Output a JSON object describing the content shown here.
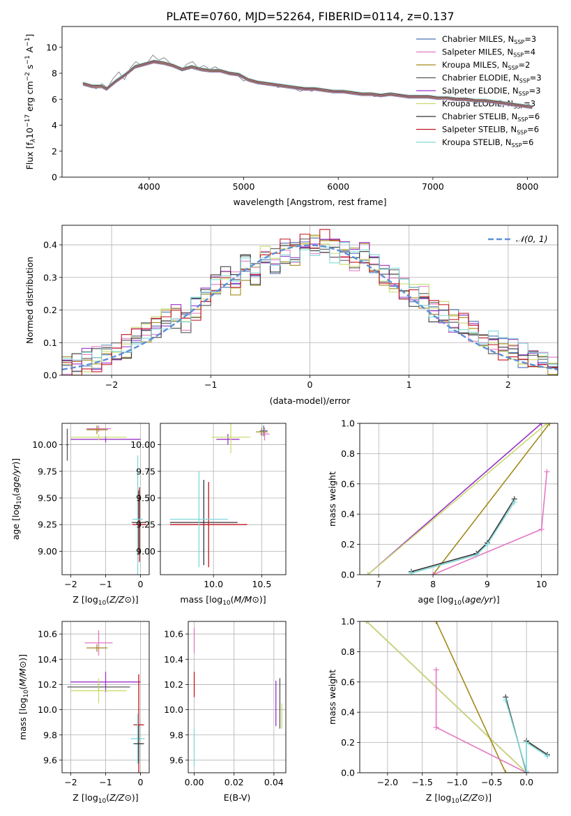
{
  "figure_title": "PLATE=0760, MJD=52264, FIBERID=0114, z=0.137",
  "legend_models": [
    {
      "name": "Chabrier MILES",
      "nssp": "3",
      "color": "#4c72b0"
    },
    {
      "name": "Salpeter MILES",
      "nssp": "4",
      "color": "#e377c2"
    },
    {
      "name": "Kroupa MILES",
      "nssp": "2",
      "color": "#a18a1c"
    },
    {
      "name": "Chabrier ELODIE",
      "nssp": "3",
      "color": "#555555"
    },
    {
      "name": "Salpeter ELODIE",
      "nssp": "3",
      "color": "#9b30c8"
    },
    {
      "name": "Kroupa ELODIE",
      "nssp": "3",
      "color": "#c8dc6e"
    },
    {
      "name": "Chabrier STELIB",
      "nssp": "6",
      "color": "#333333"
    },
    {
      "name": "Salpeter STELIB",
      "nssp": "6",
      "color": "#c0141e"
    },
    {
      "name": "Kroupa STELIB",
      "nssp": "6",
      "color": "#7fd8d8"
    }
  ],
  "chart_data": [
    {
      "type": "line",
      "xlabel": "wavelength [Angstrom, rest frame]",
      "ylabel": "Flux [f_λ 10^-17 erg cm^-2 s^-1 A^-1]",
      "ylabel_parts": [
        "Flux [f",
        "λ",
        "10",
        "−17",
        " erg cm",
        "−2",
        " s",
        "−1",
        " A",
        "−1",
        "]"
      ],
      "xlim": [
        3080,
        8320
      ],
      "ylim": [
        0,
        11.6
      ],
      "xticks": [
        4000,
        5000,
        6000,
        7000,
        8000
      ],
      "yticks": [
        0,
        2,
        4,
        6,
        8,
        10
      ],
      "grid": false,
      "legend": "right",
      "data_color": "#808080",
      "data_spectrum": {
        "x": [
          3320,
          3380,
          3440,
          3500,
          3560,
          3620,
          3680,
          3740,
          3800,
          3860,
          3920,
          3980,
          4040,
          4100,
          4160,
          4220,
          4280,
          4340,
          4400,
          4460,
          4520,
          4580,
          4640,
          4700,
          4760,
          4820,
          4880,
          4940,
          5000,
          5060,
          5120,
          5180,
          5240,
          5300,
          5360,
          5420,
          5480,
          5540,
          5600,
          5660,
          5720,
          5780,
          5840,
          5900,
          5960,
          6020,
          6080,
          6140,
          6200,
          6260,
          6320,
          6380,
          6440,
          6500,
          6560,
          6620,
          6680,
          6740,
          6800,
          6860,
          6920,
          6980,
          7040,
          7100,
          7160,
          7220,
          7280,
          7340,
          7400,
          7460,
          7520,
          7580,
          7640,
          7700,
          7760,
          7820,
          7880,
          7940,
          8000,
          8060
        ],
        "y": [
          7.3,
          7.1,
          6.8,
          7.2,
          6.9,
          7.6,
          8.1,
          7.5,
          8.4,
          8.9,
          8.6,
          8.8,
          9.4,
          9.0,
          9.2,
          8.8,
          8.6,
          8.2,
          8.7,
          8.9,
          8.4,
          8.6,
          8.3,
          8.5,
          8.2,
          8.0,
          7.9,
          7.8,
          7.4,
          7.6,
          7.3,
          7.2,
          7.1,
          7.3,
          6.9,
          7.0,
          6.9,
          6.8,
          6.6,
          6.8,
          6.6,
          6.9,
          6.7,
          6.6,
          6.7,
          6.5,
          6.6,
          6.4,
          6.4,
          6.3,
          6.5,
          6.2,
          6.3,
          6.3,
          6.4,
          6.3,
          6.2,
          6.1,
          6.3,
          6.2,
          6.1,
          6.3,
          6.0,
          6.1,
          6.0,
          5.9,
          5.9,
          6.0,
          5.9,
          5.8,
          5.9,
          5.7,
          5.8,
          5.6,
          5.7,
          5.7,
          5.5,
          5.6,
          5.5,
          5.4
        ]
      },
      "model_spectrum": {
        "x": [
          3300,
          3400,
          3500,
          3550,
          3650,
          3750,
          3850,
          3950,
          4050,
          4150,
          4250,
          4350,
          4450,
          4550,
          4650,
          4750,
          4850,
          4950,
          5050,
          5150,
          5250,
          5350,
          5450,
          5550,
          5650,
          5750,
          5850,
          5950,
          6050,
          6150,
          6250,
          6350,
          6450,
          6550,
          6650,
          6750,
          6850,
          6950,
          7050,
          7150,
          7250,
          7350,
          7450,
          7550,
          7650,
          7750,
          7850,
          7950,
          8050
        ],
        "y": [
          7.2,
          7.0,
          7.0,
          6.8,
          7.4,
          7.9,
          8.5,
          8.7,
          8.9,
          8.8,
          8.6,
          8.3,
          8.5,
          8.3,
          8.2,
          8.2,
          8.0,
          7.9,
          7.5,
          7.3,
          7.2,
          7.1,
          7.0,
          6.9,
          6.8,
          6.8,
          6.7,
          6.6,
          6.6,
          6.5,
          6.4,
          6.4,
          6.3,
          6.4,
          6.3,
          6.2,
          6.2,
          6.2,
          6.1,
          6.1,
          6.0,
          6.0,
          5.9,
          5.9,
          5.8,
          5.7,
          5.6,
          5.5,
          5.4
        ]
      }
    },
    {
      "type": "area",
      "xlabel": "(data-model)/error",
      "ylabel": "Normed distribution",
      "xlim": [
        -2.5,
        2.5
      ],
      "ylim": [
        0,
        0.46
      ],
      "xticks": [
        -2,
        -1,
        0,
        1,
        2
      ],
      "yticks": [
        0.0,
        0.1,
        0.2,
        0.3,
        0.4
      ],
      "grid": true,
      "legend": "top-right",
      "reference_curve": {
        "name": "N(0,1)",
        "color": "#5b8fd6",
        "style": "dashed"
      },
      "histogram": {
        "bin_edges": [
          -2.5,
          -2.4,
          -2.3,
          -2.2,
          -2.1,
          -2.0,
          -1.9,
          -1.8,
          -1.7,
          -1.6,
          -1.5,
          -1.4,
          -1.3,
          -1.2,
          -1.1,
          -1.0,
          -0.9,
          -0.8,
          -0.7,
          -0.6,
          -0.5,
          -0.4,
          -0.3,
          -0.2,
          -0.1,
          0.0,
          0.1,
          0.2,
          0.3,
          0.4,
          0.5,
          0.6,
          0.7,
          0.8,
          0.9,
          1.0,
          1.1,
          1.2,
          1.3,
          1.4,
          1.5,
          1.6,
          1.7,
          1.8,
          1.9,
          2.0,
          2.1,
          2.2,
          2.3,
          2.4,
          2.5
        ],
        "values": [
          0.04,
          0.03,
          0.05,
          0.05,
          0.07,
          0.06,
          0.09,
          0.12,
          0.14,
          0.15,
          0.17,
          0.18,
          0.17,
          0.2,
          0.24,
          0.28,
          0.3,
          0.28,
          0.33,
          0.31,
          0.36,
          0.35,
          0.38,
          0.37,
          0.4,
          0.39,
          0.41,
          0.38,
          0.37,
          0.36,
          0.37,
          0.34,
          0.31,
          0.29,
          0.27,
          0.24,
          0.24,
          0.2,
          0.19,
          0.17,
          0.15,
          0.14,
          0.12,
          0.1,
          0.08,
          0.08,
          0.06,
          0.05,
          0.04,
          0.03
        ]
      }
    },
    {
      "type": "scatter",
      "xlabel": "Z [log10(Z/Z⊙)]",
      "ylabel": "age [log10(age/yr)]",
      "xlim": [
        -2.25,
        0.25
      ],
      "ylim": [
        8.78,
        10.2
      ],
      "xticks": [
        -2,
        -1,
        0
      ],
      "yticks": [
        9.0,
        9.25,
        9.5,
        9.75,
        10.0
      ],
      "grid": true,
      "points": [
        {
          "model": 0,
          "x": -1.2,
          "y": 10.15,
          "xerr": 0.3,
          "yerr": 0.02
        },
        {
          "model": 1,
          "x": -1.2,
          "y": 10.15,
          "xerr": 0.35,
          "yerr": 0.03
        },
        {
          "model": 2,
          "x": -1.25,
          "y": 10.14,
          "xerr": 0.3,
          "yerr": 0.04
        },
        {
          "model": 4,
          "x": -1.0,
          "y": 10.05,
          "xerr": 1.0,
          "yerr": 0.03
        },
        {
          "model": 5,
          "x": -1.2,
          "y": 10.07,
          "xerr": 0.8,
          "yerr": 0.03
        },
        {
          "model": 3,
          "x": -2.1,
          "y": 10.0,
          "xerr": 0.04,
          "yerr": 0.15
        },
        {
          "model": 6,
          "x": -0.05,
          "y": 9.27,
          "xerr": 0.2,
          "yerr": 0.3
        },
        {
          "model": 7,
          "x": -0.03,
          "y": 9.25,
          "xerr": 0.2,
          "yerr": 0.35
        },
        {
          "model": 8,
          "x": -0.08,
          "y": 9.3,
          "xerr": 0.15,
          "yerr": 0.6
        }
      ]
    },
    {
      "type": "scatter",
      "xlabel": "mass [log10(M/M⊙)]",
      "ylabel": "",
      "xlim": [
        9.45,
        10.75
      ],
      "ylim": [
        8.78,
        10.2
      ],
      "xticks": [
        10.0,
        10.5
      ],
      "yticks": [
        9.0,
        9.25,
        9.5,
        9.75,
        10.0
      ],
      "grid": true,
      "points": [
        {
          "model": 0,
          "x": 10.52,
          "y": 10.13,
          "xerr": 0.04,
          "yerr": 0.05
        },
        {
          "model": 1,
          "x": 10.53,
          "y": 10.1,
          "xerr": 0.05,
          "yerr": 0.06
        },
        {
          "model": 2,
          "x": 10.5,
          "y": 10.12,
          "xerr": 0.06,
          "yerr": 0.04
        },
        {
          "model": 4,
          "x": 10.15,
          "y": 10.05,
          "xerr": 0.12,
          "yerr": 0.05
        },
        {
          "model": 5,
          "x": 10.18,
          "y": 10.07,
          "xerr": 0.2,
          "yerr": 0.15
        },
        {
          "model": 6,
          "x": 9.9,
          "y": 9.27,
          "xerr": 0.35,
          "yerr": 0.4
        },
        {
          "model": 7,
          "x": 9.95,
          "y": 9.25,
          "xerr": 0.4,
          "yerr": 0.4
        },
        {
          "model": 8,
          "x": 9.85,
          "y": 9.3,
          "xerr": 0.3,
          "yerr": 0.45
        }
      ]
    },
    {
      "type": "line",
      "xlabel": "age [log10(age/yr)]",
      "ylabel": "mass weight",
      "xlim": [
        6.65,
        10.3
      ],
      "ylim": [
        0,
        1.0
      ],
      "xticks": [
        7,
        8,
        9,
        10
      ],
      "yticks": [
        0.0,
        0.2,
        0.4,
        0.6,
        0.8,
        1.0
      ],
      "grid": true,
      "series": [
        {
          "model": 4,
          "x": [
            6.8,
            10.0
          ],
          "y": [
            0.0,
            1.0
          ]
        },
        {
          "model": 5,
          "x": [
            6.8,
            10.1
          ],
          "y": [
            0.0,
            1.0
          ]
        },
        {
          "model": 2,
          "x": [
            8.0,
            10.15
          ],
          "y": [
            0.0,
            1.0
          ]
        },
        {
          "model": 1,
          "x": [
            8.0,
            10.0,
            10.1
          ],
          "y": [
            0.0,
            0.3,
            0.68
          ]
        },
        {
          "model": 6,
          "x": [
            7.6,
            8.8,
            9.0,
            9.5
          ],
          "y": [
            0.02,
            0.14,
            0.21,
            0.5
          ]
        },
        {
          "model": 8,
          "x": [
            7.6,
            8.8,
            9.0,
            9.5
          ],
          "y": [
            0.01,
            0.13,
            0.2,
            0.48
          ]
        }
      ]
    },
    {
      "type": "scatter",
      "xlabel": "Z [log10(Z/Z⊙)]",
      "ylabel": "mass [log10(M/M⊙)]",
      "xlim": [
        -2.25,
        0.25
      ],
      "ylim": [
        9.5,
        10.7
      ],
      "xticks": [
        -2,
        -1,
        0
      ],
      "yticks": [
        9.6,
        9.8,
        10.0,
        10.2,
        10.4,
        10.6
      ],
      "grid": true,
      "points": [
        {
          "model": 1,
          "x": -1.2,
          "y": 10.53,
          "xerr": 0.4,
          "yerr": 0.1
        },
        {
          "model": 2,
          "x": -1.25,
          "y": 10.49,
          "xerr": 0.3,
          "yerr": 0.03
        },
        {
          "model": 4,
          "x": -1.0,
          "y": 10.22,
          "xerr": 1.0,
          "yerr": 0.08
        },
        {
          "model": 3,
          "x": -1.2,
          "y": 10.18,
          "xerr": 0.9,
          "yerr": 0.03
        },
        {
          "model": 5,
          "x": -1.2,
          "y": 10.15,
          "xerr": 0.8,
          "yerr": 0.1
        },
        {
          "model": 7,
          "x": -0.05,
          "y": 9.88,
          "xerr": 0.15,
          "yerr": 0.4
        },
        {
          "model": 8,
          "x": -0.08,
          "y": 9.77,
          "xerr": 0.2,
          "yerr": 0.2
        },
        {
          "model": 6,
          "x": -0.05,
          "y": 9.73,
          "xerr": 0.15,
          "yerr": 0.15
        }
      ]
    },
    {
      "type": "scatter",
      "xlabel": "E(B-V)",
      "ylabel": "",
      "xlim": [
        -0.003,
        0.046
      ],
      "ylim": [
        9.5,
        10.7
      ],
      "xticks": [
        0.0,
        0.02,
        0.04
      ],
      "yticks": [
        9.6,
        9.8,
        10.0,
        10.2,
        10.4,
        10.6
      ],
      "grid": true,
      "points": [
        {
          "model": 1,
          "x": 0.0,
          "y": 10.55,
          "xerr": 0.0,
          "yerr": 0.1
        },
        {
          "model": 7,
          "x": 0.0,
          "y": 10.2,
          "xerr": 0.0,
          "yerr": 0.1
        },
        {
          "model": 8,
          "x": 0.0,
          "y": 9.7,
          "xerr": 0.0,
          "yerr": 0.15
        },
        {
          "model": 4,
          "x": 0.041,
          "y": 10.05,
          "xerr": 0.0,
          "yerr": 0.18
        },
        {
          "model": 3,
          "x": 0.043,
          "y": 10.05,
          "xerr": 0.0,
          "yerr": 0.2
        },
        {
          "model": 5,
          "x": 0.044,
          "y": 9.95,
          "xerr": 0.0,
          "yerr": 0.1
        }
      ]
    },
    {
      "type": "line",
      "xlabel": "Z [log10(Z/Z⊙)]",
      "ylabel": "mass weight",
      "xlim": [
        -2.4,
        0.45
      ],
      "ylim": [
        0,
        1.0
      ],
      "xticks": [
        -2.0,
        -1.5,
        -1.0,
        -0.5,
        0.0
      ],
      "yticks": [
        0.0,
        0.2,
        0.4,
        0.6,
        0.8,
        1.0
      ],
      "grid": true,
      "series": [
        {
          "model": 4,
          "x": [
            -2.3,
            0.0
          ],
          "y": [
            1.0,
            0.0
          ]
        },
        {
          "model": 5,
          "x": [
            -2.3,
            0.0
          ],
          "y": [
            1.0,
            0.0
          ]
        },
        {
          "model": 2,
          "x": [
            -1.3,
            -0.3,
            0.0
          ],
          "y": [
            1.0,
            0.0,
            0.0
          ]
        },
        {
          "model": 1,
          "x": [
            -1.3,
            -1.3,
            0.0
          ],
          "y": [
            0.68,
            0.3,
            0.0
          ]
        },
        {
          "model": 6,
          "x": [
            -0.3,
            0.0,
            0.0,
            0.3
          ],
          "y": [
            0.5,
            0.0,
            0.21,
            0.12
          ]
        },
        {
          "model": 8,
          "x": [
            -0.3,
            0.0,
            0.0,
            0.3
          ],
          "y": [
            0.48,
            0.01,
            0.2,
            0.11
          ]
        }
      ]
    }
  ]
}
